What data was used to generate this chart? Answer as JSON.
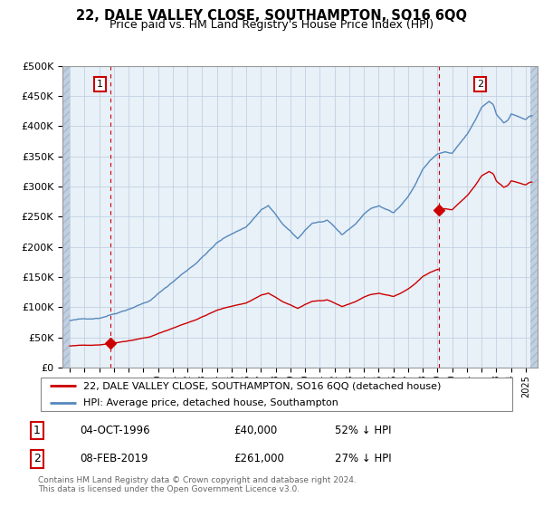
{
  "title": "22, DALE VALLEY CLOSE, SOUTHAMPTON, SO16 6QQ",
  "subtitle": "Price paid vs. HM Land Registry's House Price Index (HPI)",
  "sale1_date": "04-OCT-1996",
  "sale1_price": 40000,
  "sale1_year": 1996.75,
  "sale2_date": "08-FEB-2019",
  "sale2_price": 261000,
  "sale2_year": 2019.1,
  "legend_line1": "22, DALE VALLEY CLOSE, SOUTHAMPTON, SO16 6QQ (detached house)",
  "legend_line2": "HPI: Average price, detached house, Southampton",
  "footnote1": "Contains HM Land Registry data © Crown copyright and database right 2024.",
  "footnote2": "This data is licensed under the Open Government Licence v3.0.",
  "red_color": "#cc0000",
  "blue_color": "#5588bb",
  "bg_color": "#e8f0f8",
  "hatch_color": "#c0d0e0",
  "grid_color": "#bbccdd",
  "ylim": [
    0,
    500000
  ],
  "xlim_left": 1993.5,
  "xlim_right": 2025.8
}
